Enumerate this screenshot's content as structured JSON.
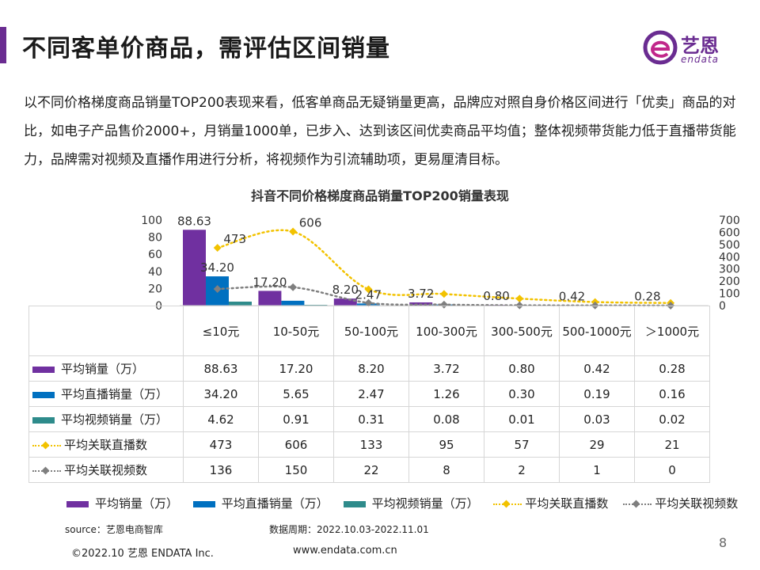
{
  "header": {
    "title": "不同客单价商品，需评估区间销量",
    "logo_text": "艺恩",
    "logo_sub": "endata"
  },
  "intro": "以不同价格梯度商品销量TOP200表现来看，低客单商品无疑销量更高，品牌应对照自身价格区间进行「优卖」商品的对比，如电子产品售价2000+，月销量1000单，已步入、达到该区间优卖商品平均值；整体视频带货能力低于直播带货能力，品牌需对视频及直播作用进行分析，将视频作为引流辅助项，更易厘清目标。",
  "colors": {
    "avg_sales": "#7030a0",
    "live_sales": "#0070c0",
    "video_sales": "#2e8b8b",
    "live_count": "#f2c200",
    "video_count": "#7f7f7f",
    "brand": "#6a2c91"
  },
  "chart_data": {
    "type": "bar",
    "title": "抖音不同价格梯度商品销量TOP200销量表现",
    "categories": [
      "≤10元",
      "10-50元",
      "50-100元",
      "100-300元",
      "300-500元",
      "500-1000元",
      "＞1000元"
    ],
    "series": [
      {
        "name": "平均销量（万）",
        "kind": "bar",
        "axis": "left",
        "values": [
          88.63,
          17.2,
          8.2,
          3.72,
          0.8,
          0.42,
          0.28
        ]
      },
      {
        "name": "平均直播销量（万）",
        "kind": "bar",
        "axis": "left",
        "values": [
          34.2,
          5.65,
          2.47,
          1.26,
          0.3,
          0.19,
          0.16
        ]
      },
      {
        "name": "平均视频销量（万）",
        "kind": "bar",
        "axis": "left",
        "values": [
          4.62,
          0.91,
          0.31,
          0.08,
          0.01,
          0.03,
          0.02
        ]
      },
      {
        "name": "平均关联直播数",
        "kind": "line",
        "axis": "right",
        "values": [
          473,
          606,
          133,
          95,
          57,
          29,
          21
        ]
      },
      {
        "name": "平均关联视频数",
        "kind": "line",
        "axis": "right",
        "values": [
          136,
          150,
          22,
          8,
          2,
          1,
          0
        ]
      }
    ],
    "y_left": {
      "min": 0,
      "max": 100,
      "ticks": [
        "0",
        "20",
        "40",
        "60",
        "80",
        "100"
      ]
    },
    "y_right": {
      "min": 0,
      "max": 700,
      "ticks": [
        "0",
        "100",
        "200",
        "300",
        "400",
        "500",
        "600",
        "700"
      ]
    },
    "data_labels": [
      {
        "text": "88.63",
        "series": 0,
        "index": 0
      },
      {
        "text": "34.20",
        "series": 1,
        "index": 0
      },
      {
        "text": "17.20",
        "series": 0,
        "index": 1
      },
      {
        "text": "8.20",
        "series": 0,
        "index": 2
      },
      {
        "text": "2.47",
        "series": 1,
        "index": 2
      },
      {
        "text": "3.72",
        "series": 0,
        "index": 3
      },
      {
        "text": "0.80",
        "series": 0,
        "index": 4
      },
      {
        "text": "0.42",
        "series": 0,
        "index": 5
      },
      {
        "text": "0.28",
        "series": 0,
        "index": 6
      },
      {
        "text": "473",
        "series": 3,
        "index": 0
      },
      {
        "text": "606",
        "series": 3,
        "index": 1
      }
    ],
    "table": {
      "rows": [
        {
          "label": "平均销量（万）",
          "values": [
            "88.63",
            "17.20",
            "8.20",
            "3.72",
            "0.80",
            "0.42",
            "0.28"
          ]
        },
        {
          "label": "平均直播销量（万）",
          "values": [
            "34.20",
            "5.65",
            "2.47",
            "1.26",
            "0.30",
            "0.19",
            "0.16"
          ]
        },
        {
          "label": "平均视频销量（万）",
          "values": [
            "4.62",
            "0.91",
            "0.31",
            "0.08",
            "0.01",
            "0.03",
            "0.02"
          ]
        },
        {
          "label": "平均关联直播数",
          "values": [
            "473",
            "606",
            "133",
            "95",
            "57",
            "29",
            "21"
          ]
        },
        {
          "label": "平均关联视频数",
          "values": [
            "136",
            "150",
            "22",
            "8",
            "2",
            "1",
            "0"
          ]
        }
      ]
    }
  },
  "footer": {
    "source": "source：艺恩电商智库",
    "period": "数据周期：2022.10.03-2022.11.01",
    "copyright": "©2022.10 艺恩 ENDATA Inc.",
    "website": "www.endata.com.cn",
    "page": "8"
  }
}
